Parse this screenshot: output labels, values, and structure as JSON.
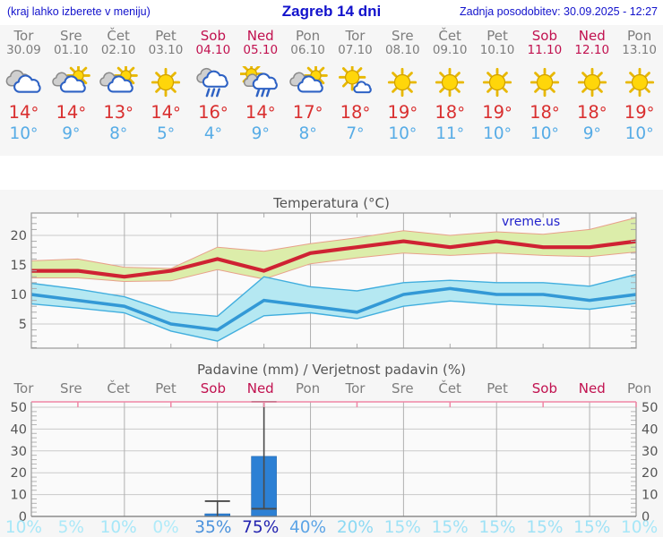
{
  "header": {
    "left_note": "(kraj lahko izberete v meniju)",
    "title": "Zagreb 14 dni",
    "updated": "Zadnja posodobitev: 30.09.2025 - 12:27"
  },
  "units": {
    "degree": "°"
  },
  "colors": {
    "header_blue": "#1212cc",
    "weekday": "#7d7d7d",
    "weekend": "#c1114f",
    "high_temp": "#d92f2f",
    "low_temp": "#57ace6",
    "title_gray": "#555555",
    "red_line": "#cf2233",
    "high_band_fill": "#dcedaa",
    "high_band_edge": "#e8a08a",
    "blue_line": "#3399d6",
    "low_band_fill": "#b5e8f2",
    "low_band_edge": "#41aede",
    "bar_blue": "#2c80d4",
    "whisker": "#4a4a4a",
    "pink_axis": "#ef86a5",
    "watermark_blue": "#2222cc"
  },
  "days": [
    {
      "name": "Tor",
      "date": "30.09",
      "weekend": false,
      "icon": "cloudy",
      "high": 14,
      "low": 10,
      "precip_prob": "10%",
      "prob_color": "#a7e7f8"
    },
    {
      "name": "Sre",
      "date": "01.10",
      "weekend": false,
      "icon": "sun-cloud",
      "high": 14,
      "low": 9,
      "precip_prob": "5%",
      "prob_color": "#ace9f8"
    },
    {
      "name": "Čet",
      "date": "02.10",
      "weekend": false,
      "icon": "sun-cloud",
      "high": 13,
      "low": 8,
      "precip_prob": "10%",
      "prob_color": "#a7e7f8"
    },
    {
      "name": "Pet",
      "date": "03.10",
      "weekend": false,
      "icon": "sunny",
      "high": 14,
      "low": 5,
      "precip_prob": "0%",
      "prob_color": "#b0ebf9"
    },
    {
      "name": "Sob",
      "date": "04.10",
      "weekend": true,
      "icon": "rain",
      "high": 16,
      "low": 4,
      "precip_prob": "35%",
      "prob_color": "#4b92dc"
    },
    {
      "name": "Ned",
      "date": "05.10",
      "weekend": true,
      "icon": "sun-rain",
      "high": 14,
      "low": 9,
      "precip_prob": "75%",
      "prob_color": "#2424b0"
    },
    {
      "name": "Pon",
      "date": "06.10",
      "weekend": false,
      "icon": "sun-cloud",
      "high": 17,
      "low": 8,
      "precip_prob": "40%",
      "prob_color": "#5ca4e6"
    },
    {
      "name": "Tor",
      "date": "07.10",
      "weekend": false,
      "icon": "sun-small-cloud",
      "high": 18,
      "low": 7,
      "precip_prob": "20%",
      "prob_color": "#8cd9f3"
    },
    {
      "name": "Sre",
      "date": "08.10",
      "weekend": false,
      "icon": "sunny",
      "high": 19,
      "low": 10,
      "precip_prob": "15%",
      "prob_color": "#9fe2f6"
    },
    {
      "name": "Čet",
      "date": "09.10",
      "weekend": false,
      "icon": "sunny",
      "high": 18,
      "low": 11,
      "precip_prob": "15%",
      "prob_color": "#9fe2f6"
    },
    {
      "name": "Pet",
      "date": "10.10",
      "weekend": false,
      "icon": "sunny",
      "high": 19,
      "low": 10,
      "precip_prob": "15%",
      "prob_color": "#9fe2f6"
    },
    {
      "name": "Sob",
      "date": "11.10",
      "weekend": true,
      "icon": "sunny",
      "high": 18,
      "low": 10,
      "precip_prob": "15%",
      "prob_color": "#9fe2f6"
    },
    {
      "name": "Ned",
      "date": "12.10",
      "weekend": true,
      "icon": "sunny",
      "high": 18,
      "low": 9,
      "precip_prob": "15%",
      "prob_color": "#9fe2f6"
    },
    {
      "name": "Pon",
      "date": "13.10",
      "weekend": false,
      "icon": "sunny",
      "high": 19,
      "low": 10,
      "precip_prob": "10%",
      "prob_color": "#a7e7f8"
    }
  ],
  "chart_data": [
    {
      "type": "line",
      "title": "Temperatura (°C)",
      "watermark": "vreme.us",
      "categories": [
        "Tor",
        "Sre",
        "Čet",
        "Pet",
        "Sob",
        "Ned",
        "Pon",
        "Tor",
        "Sre",
        "Čet",
        "Pet",
        "Sob",
        "Ned",
        "Pon"
      ],
      "yticks": [
        5,
        10,
        15,
        20
      ],
      "ylim": [
        1,
        24
      ],
      "grid": true,
      "series": [
        {
          "name": "high",
          "values": [
            14,
            14,
            13,
            14,
            16,
            14,
            17,
            18,
            19,
            18,
            19,
            18,
            18,
            19
          ]
        },
        {
          "name": "high_range_max",
          "values": [
            15.7,
            16,
            14.6,
            14.4,
            18,
            17.3,
            18.6,
            19.6,
            20.8,
            20,
            20.6,
            20.2,
            21,
            23
          ]
        },
        {
          "name": "high_range_min",
          "values": [
            12.8,
            12.8,
            12.2,
            12.3,
            14.2,
            12.6,
            15.2,
            16.2,
            17,
            16.6,
            17,
            16.6,
            16.4,
            17.2
          ]
        },
        {
          "name": "low",
          "values": [
            10,
            9,
            8,
            5,
            4,
            9,
            8,
            7,
            10,
            11,
            10,
            10,
            9,
            10
          ]
        },
        {
          "name": "low_range_max",
          "values": [
            11.9,
            10.9,
            9.6,
            7,
            6.3,
            13,
            11.3,
            10.6,
            12,
            12.4,
            12,
            12,
            11.4,
            13.4
          ]
        },
        {
          "name": "low_range_min",
          "values": [
            8.4,
            7.7,
            6.9,
            3.8,
            2.1,
            6.4,
            6.9,
            5.9,
            8,
            8.9,
            8.3,
            8,
            7.5,
            8.5
          ]
        }
      ]
    },
    {
      "type": "bar",
      "title": "Padavine (mm) / Verjetnost padavin (%)",
      "categories": [
        "Tor",
        "Sre",
        "Čet",
        "Pet",
        "Sob",
        "Ned",
        "Pon",
        "Tor",
        "Sre",
        "Čet",
        "Pet",
        "Sob",
        "Ned",
        "Pon"
      ],
      "values": [
        0,
        0,
        0,
        0,
        1.2,
        27.5,
        0,
        0,
        0,
        0,
        0,
        0,
        0,
        0
      ],
      "whiskers": [
        {
          "index": 4,
          "from": 0,
          "to": 7,
          "caps": [
            "top"
          ]
        },
        {
          "index": 5,
          "from": 3.5,
          "to": 52.5,
          "caps": [
            "top",
            "bottom"
          ]
        }
      ],
      "probabilities": [
        "10%",
        "5%",
        "10%",
        "0%",
        "35%",
        "75%",
        "40%",
        "20%",
        "15%",
        "15%",
        "15%",
        "15%",
        "15%",
        "10%"
      ],
      "yticks": [
        0,
        10,
        20,
        30,
        40,
        50
      ],
      "ylim": [
        0,
        52.5
      ],
      "grid": true
    }
  ]
}
